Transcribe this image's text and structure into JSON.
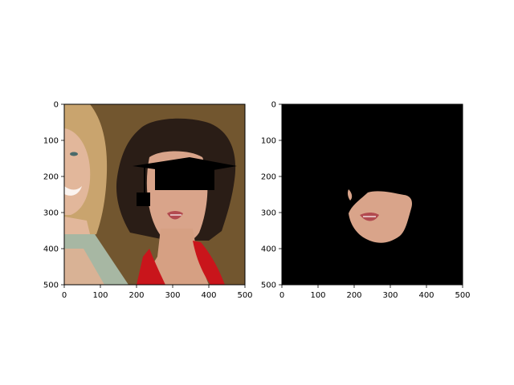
{
  "chart_data": [
    {
      "type": "image",
      "title": "",
      "xlabel": "",
      "ylabel": "",
      "xlim": [
        0,
        500
      ],
      "ylim": [
        500,
        0
      ],
      "xticks": [
        0,
        100,
        200,
        300,
        400,
        500
      ],
      "yticks": [
        0,
        100,
        200,
        300,
        400,
        500
      ],
      "content": "photo of two women; the right woman wears a black graduation cap drawn over her hair, a red halter top, and has a small black square near her cheek",
      "palette": {
        "background": "#6b4f2a",
        "hair": "#2a1d16",
        "skin": "#d9a48a",
        "left_person_hair": "#c9a46e",
        "left_person_skin": "#e2b79b",
        "top": "#c9151b",
        "scarf": "#a7b7a3",
        "cap": "#000000"
      }
    },
    {
      "type": "image",
      "title": "",
      "xlabel": "",
      "ylabel": "",
      "xlim": [
        0,
        500
      ],
      "ylim": [
        500,
        0
      ],
      "xticks": [
        0,
        100,
        200,
        300,
        400,
        500
      ],
      "yticks": [
        0,
        100,
        200,
        300,
        400,
        500
      ],
      "content": "segmentation mask: black background showing only the lower face region (nose, mouth, chin) of the right woman",
      "palette": {
        "background": "#000000",
        "skin": "#d9a48a",
        "lips": "#b24a4f"
      }
    }
  ]
}
